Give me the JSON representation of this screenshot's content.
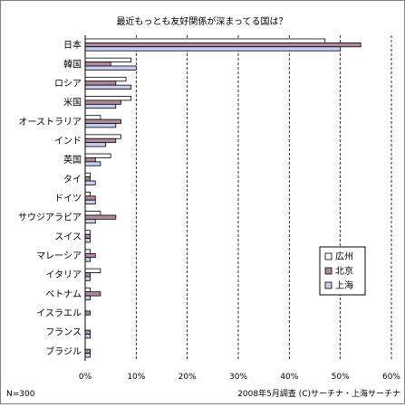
{
  "chart_data": {
    "type": "bar",
    "orientation": "horizontal",
    "title": "最近もっとも友好関係が深まってる国は？",
    "categories": [
      "日本",
      "韓国",
      "ロシア",
      "米国",
      "オーストラリア",
      "インド",
      "英国",
      "タイ",
      "ドイツ",
      "サウジアラビア",
      "スイス",
      "マレーシア",
      "イタリア",
      "ベトナム",
      "イスラエル",
      "フランス",
      "ブラジル"
    ],
    "series": [
      {
        "name": "広州",
        "color": "#ffffff",
        "values": [
          47,
          9,
          8,
          9,
          3,
          7,
          5,
          1,
          1,
          3,
          1,
          1,
          3,
          1,
          0,
          0,
          0
        ]
      },
      {
        "name": "北京",
        "color": "#b08a9a",
        "values": [
          54,
          5,
          6,
          7,
          7,
          6,
          2,
          1,
          2,
          6,
          1,
          2,
          1,
          3,
          1,
          1,
          1
        ]
      },
      {
        "name": "上海",
        "color": "#c8ccf0",
        "values": [
          50,
          10,
          9,
          6,
          6,
          4,
          3,
          2,
          2,
          2,
          1,
          1,
          1,
          1,
          0,
          1,
          1
        ]
      }
    ],
    "xlim": [
      0,
      60
    ],
    "xticks": [
      "0%",
      "10%",
      "20%",
      "30%",
      "40%",
      "50%",
      "60%"
    ],
    "legend_position": "right",
    "grid": "vertical-dashed"
  },
  "footer": {
    "sample_size": "N=300",
    "source": "2008年5月調査 (C)サーチナ・上海サーチナ"
  }
}
